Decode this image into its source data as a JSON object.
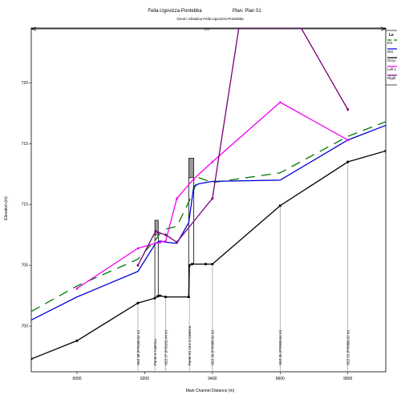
{
  "chart_data": {
    "type": "line",
    "title": "Fella-Ugovizza-Pontebba",
    "plan_label": "Plan: Plan 01",
    "subtitle": "Geom: Idraulica Fella Ugovizza-Pontebba",
    "xlabel": "Main Channel Distance (m)",
    "ylabel": "Elevation (m)",
    "xlim": [
      8865,
      9912
    ],
    "ylim": [
      696.25,
      724.5
    ],
    "x_ticks": [
      9000,
      9200,
      9400,
      9600,
      9800
    ],
    "y_ticks": [
      700,
      705,
      710,
      715,
      720
    ],
    "grid": false,
    "legend_title": "Le",
    "legend_position": "top-right",
    "legend_entries": [
      "EG",
      "WS",
      "Grou",
      "Left L",
      "Right"
    ],
    "series": [
      {
        "key": "eg",
        "name": "EG",
        "color": "#007700",
        "dash": "12,8",
        "marker": "none",
        "x": [
          8865,
          9000,
          9180,
          9232,
          9245,
          9265,
          9295,
          9330,
          9360,
          9400,
          9600,
          9800,
          9912
        ],
        "y": [
          701.2,
          703.3,
          705.5,
          707.1,
          707.6,
          708.0,
          708.2,
          710.2,
          712.2,
          711.8,
          712.6,
          715.6,
          716.8
        ]
      },
      {
        "key": "ws",
        "name": "WS",
        "color": "#0000dd",
        "dash": "",
        "marker": "none",
        "x": [
          8865,
          9000,
          9180,
          9232,
          9245,
          9262,
          9295,
          9330,
          9345,
          9360,
          9400,
          9600,
          9800,
          9912
        ],
        "y": [
          700.5,
          702.4,
          704.5,
          706.8,
          707.0,
          706.9,
          706.8,
          708.5,
          711.5,
          711.7,
          711.9,
          712.0,
          715.3,
          716.5
        ]
      },
      {
        "key": "ground",
        "name": "Ground",
        "color": "#000000",
        "dash": "",
        "marker": "square",
        "x": [
          8865,
          9000,
          9180,
          9230,
          9238,
          9245,
          9262,
          9330,
          9332,
          9340,
          9380,
          9400,
          9600,
          9800,
          9912
        ],
        "y": [
          697.3,
          698.8,
          701.9,
          702.3,
          702.45,
          702.5,
          702.4,
          702.4,
          705.0,
          705.1,
          705.1,
          705.1,
          709.9,
          713.5,
          714.4
        ]
      },
      {
        "key": "leftlevee",
        "name": "Left Levee",
        "color": "#ee00ee",
        "dash": "",
        "marker": "triangle",
        "x": [
          9000,
          9180,
          9245,
          9262,
          9295,
          9345,
          9400,
          9600,
          9800
        ],
        "y": [
          703.1,
          706.4,
          706.9,
          707.0,
          710.5,
          712.1,
          713.5,
          718.4,
          715.3
        ]
      },
      {
        "key": "rightlevee",
        "name": "Right Levee",
        "color": "#770077",
        "dash": "",
        "marker": "diamond",
        "x": [
          9180,
          9232,
          9240,
          9262,
          9295,
          9400,
          9478,
          9480,
          9600,
          9662,
          9800
        ],
        "y": [
          705.0,
          707.8,
          707.7,
          707.5,
          706.9,
          710.5,
          724.5,
          724.5,
          724.5,
          724.5,
          717.8
        ]
      }
    ],
    "cross_sections": [
      {
        "x": 9180,
        "label": "SEZ 38 (P!/9180.62 m)"
      },
      {
        "x": 9230,
        "label": "Ponte S.Caterina"
      },
      {
        "x": 9262,
        "label": "SEZ 37 (P!/9232.44 m)"
      },
      {
        "x": 9332,
        "label": "Ponte SS 13 e S.Caterina"
      },
      {
        "x": 9400,
        "label": "SEZ 36 (P!/9380.62 m)"
      },
      {
        "x": 9600,
        "label": "SEZ 35 (P!/9590.62 m)"
      },
      {
        "x": 9800,
        "label": "SEZ 31 (P!/9800.62 m)"
      }
    ],
    "reach_marker": "CCI",
    "bridges": [
      {
        "x_start": 9230,
        "x_end": 9240,
        "deck_top": 708.7,
        "deck_bottom": 707.5
      },
      {
        "x_start": 9330,
        "x_end": 9345,
        "deck_top": 713.8,
        "deck_bottom": 712.2
      }
    ]
  }
}
